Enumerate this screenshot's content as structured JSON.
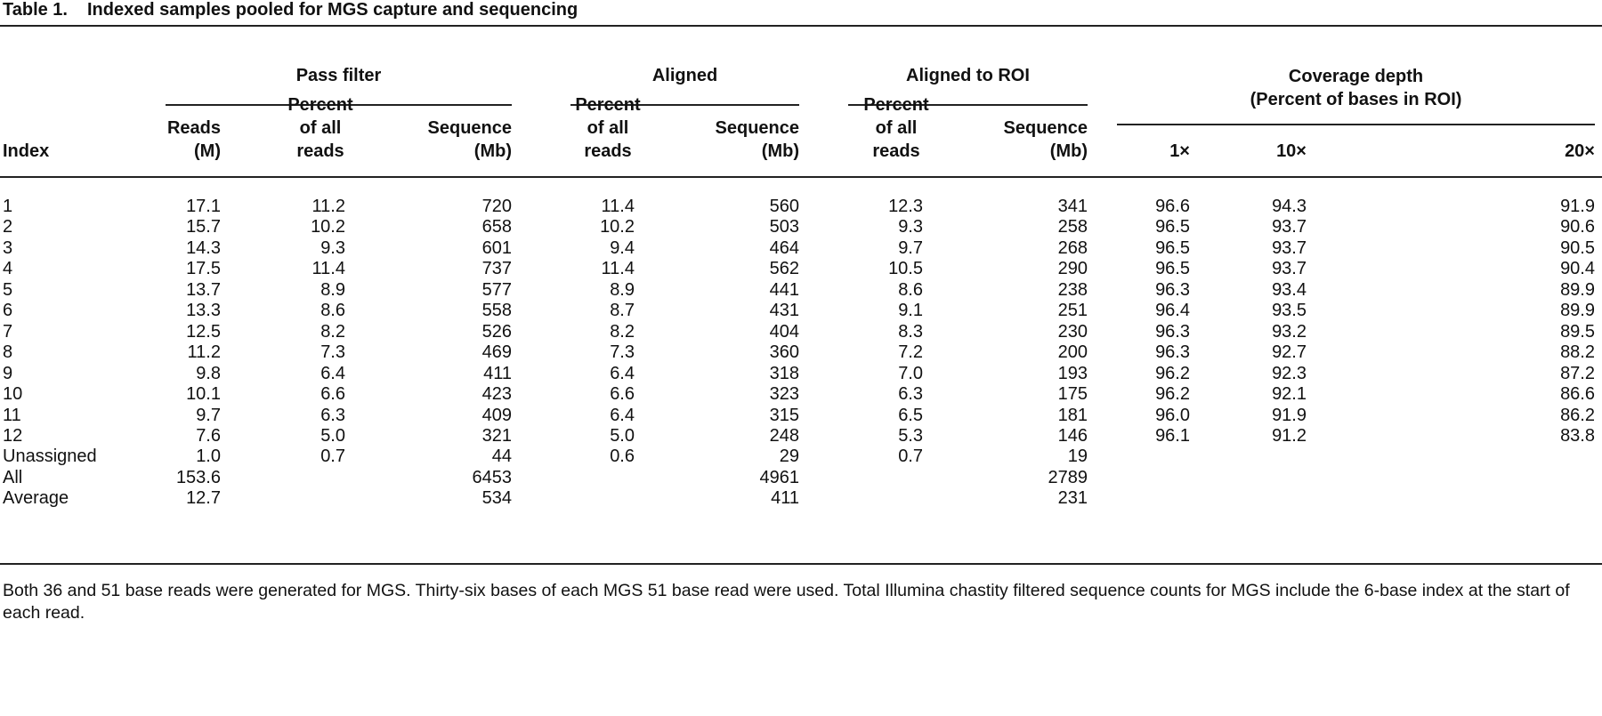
{
  "title": {
    "label": "Table 1.",
    "text": "Indexed samples pooled for MGS capture and sequencing"
  },
  "groups": {
    "pass_filter": "Pass filter",
    "aligned": "Aligned",
    "aligned_roi": "Aligned to ROI",
    "coverage_l1": "Coverage depth",
    "coverage_l2": "(Percent of bases in ROI)"
  },
  "headers": {
    "index": "Index",
    "reads_l1": "Reads",
    "reads_l2": "(M)",
    "pct_l1": "Percent",
    "pct_l2": "of all",
    "pct_l3": "reads",
    "seq_l1": "Sequence",
    "seq_l2": "(Mb)",
    "cov1": "1×",
    "cov10": "10×",
    "cov20": "20×"
  },
  "rows": [
    [
      "1",
      "17.1",
      "11.2",
      "720",
      "11.4",
      "560",
      "12.3",
      "341",
      "96.6",
      "94.3",
      "91.9"
    ],
    [
      "2",
      "15.7",
      "10.2",
      "658",
      "10.2",
      "503",
      "9.3",
      "258",
      "96.5",
      "93.7",
      "90.6"
    ],
    [
      "3",
      "14.3",
      "9.3",
      "601",
      "9.4",
      "464",
      "9.7",
      "268",
      "96.5",
      "93.7",
      "90.5"
    ],
    [
      "4",
      "17.5",
      "11.4",
      "737",
      "11.4",
      "562",
      "10.5",
      "290",
      "96.5",
      "93.7",
      "90.4"
    ],
    [
      "5",
      "13.7",
      "8.9",
      "577",
      "8.9",
      "441",
      "8.6",
      "238",
      "96.3",
      "93.4",
      "89.9"
    ],
    [
      "6",
      "13.3",
      "8.6",
      "558",
      "8.7",
      "431",
      "9.1",
      "251",
      "96.4",
      "93.5",
      "89.9"
    ],
    [
      "7",
      "12.5",
      "8.2",
      "526",
      "8.2",
      "404",
      "8.3",
      "230",
      "96.3",
      "93.2",
      "89.5"
    ],
    [
      "8",
      "11.2",
      "7.3",
      "469",
      "7.3",
      "360",
      "7.2",
      "200",
      "96.3",
      "92.7",
      "88.2"
    ],
    [
      "9",
      "9.8",
      "6.4",
      "411",
      "6.4",
      "318",
      "7.0",
      "193",
      "96.2",
      "92.3",
      "87.2"
    ],
    [
      "10",
      "10.1",
      "6.6",
      "423",
      "6.6",
      "323",
      "6.3",
      "175",
      "96.2",
      "92.1",
      "86.6"
    ],
    [
      "11",
      "9.7",
      "6.3",
      "409",
      "6.4",
      "315",
      "6.5",
      "181",
      "96.0",
      "91.9",
      "86.2"
    ],
    [
      "12",
      "7.6",
      "5.0",
      "321",
      "5.0",
      "248",
      "5.3",
      "146",
      "96.1",
      "91.2",
      "83.8"
    ],
    [
      "Unassigned",
      "1.0",
      "0.7",
      "44",
      "0.6",
      "29",
      "0.7",
      "19",
      "",
      "",
      ""
    ],
    [
      "All",
      "153.6",
      "",
      "6453",
      "",
      "4961",
      "",
      "2789",
      "",
      "",
      ""
    ],
    [
      "Average",
      "12.7",
      "",
      "534",
      "",
      "411",
      "",
      "231",
      "",
      "",
      ""
    ]
  ],
  "footnote": "Both 36 and 51 base reads were generated for MGS. Thirty-six bases of each MGS 51 base read were used. Total Illumina chastity filtered sequence counts for MGS include the 6-base index at the start of each read."
}
